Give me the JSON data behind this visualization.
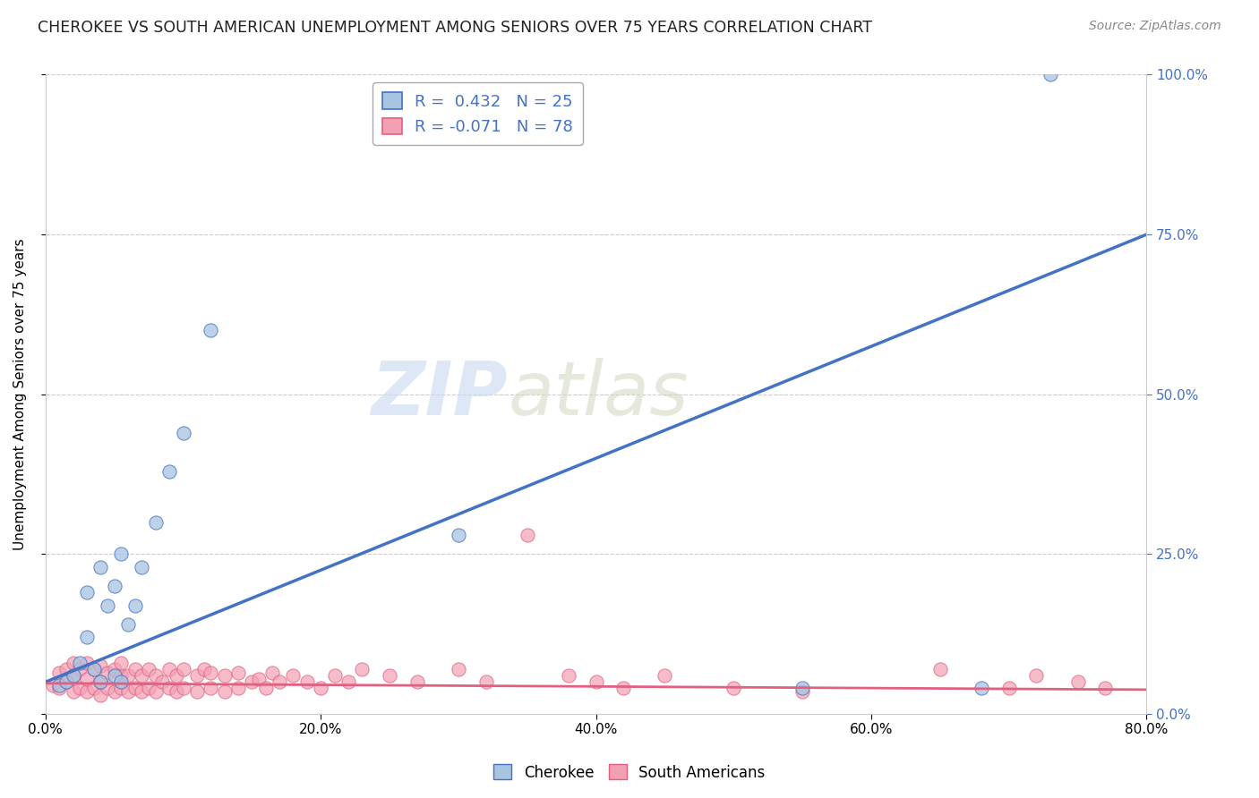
{
  "title": "CHEROKEE VS SOUTH AMERICAN UNEMPLOYMENT AMONG SENIORS OVER 75 YEARS CORRELATION CHART",
  "source": "Source: ZipAtlas.com",
  "ylabel": "Unemployment Among Seniors over 75 years",
  "xlim": [
    0,
    0.8
  ],
  "ylim": [
    0,
    1.0
  ],
  "xticks": [
    0.0,
    0.2,
    0.4,
    0.6,
    0.8
  ],
  "xtick_labels": [
    "0.0%",
    "20.0%",
    "40.0%",
    "60.0%",
    "80.0%"
  ],
  "yticks": [
    0.0,
    0.25,
    0.5,
    0.75,
    1.0
  ],
  "ytick_labels": [
    "0.0%",
    "25.0%",
    "50.0%",
    "75.0%",
    "100.0%"
  ],
  "right_ytick_labels": [
    "0.0%",
    "25.0%",
    "50.0%",
    "75.0%",
    "100.0%"
  ],
  "cherokee_R": 0.432,
  "cherokee_N": 25,
  "southam_R": -0.071,
  "southam_N": 78,
  "cherokee_color": "#a8c4e0",
  "southam_color": "#f4a0b4",
  "cherokee_line_color": "#4472c4",
  "southam_line_color": "#e06080",
  "watermark_zip": "ZIP",
  "watermark_atlas": "atlas",
  "cherokee_line_x0": 0.0,
  "cherokee_line_y0": 0.05,
  "cherokee_line_x1": 0.8,
  "cherokee_line_y1": 0.75,
  "southam_line_x0": 0.0,
  "southam_line_y0": 0.048,
  "southam_line_x1": 0.8,
  "southam_line_y1": 0.038,
  "cherokee_x": [
    0.01,
    0.015,
    0.02,
    0.025,
    0.03,
    0.03,
    0.035,
    0.04,
    0.04,
    0.045,
    0.05,
    0.05,
    0.055,
    0.055,
    0.06,
    0.065,
    0.07,
    0.08,
    0.09,
    0.1,
    0.12,
    0.3,
    0.55,
    0.68,
    0.73
  ],
  "cherokee_y": [
    0.045,
    0.05,
    0.06,
    0.08,
    0.12,
    0.19,
    0.07,
    0.05,
    0.23,
    0.17,
    0.06,
    0.2,
    0.05,
    0.25,
    0.14,
    0.17,
    0.23,
    0.3,
    0.38,
    0.44,
    0.6,
    0.28,
    0.04,
    0.04,
    1.0
  ],
  "southam_x": [
    0.005,
    0.01,
    0.01,
    0.015,
    0.015,
    0.02,
    0.02,
    0.02,
    0.025,
    0.025,
    0.03,
    0.03,
    0.03,
    0.035,
    0.035,
    0.04,
    0.04,
    0.04,
    0.045,
    0.045,
    0.05,
    0.05,
    0.055,
    0.055,
    0.055,
    0.06,
    0.06,
    0.065,
    0.065,
    0.07,
    0.07,
    0.075,
    0.075,
    0.08,
    0.08,
    0.085,
    0.09,
    0.09,
    0.095,
    0.095,
    0.1,
    0.1,
    0.11,
    0.11,
    0.115,
    0.12,
    0.12,
    0.13,
    0.13,
    0.14,
    0.14,
    0.15,
    0.155,
    0.16,
    0.165,
    0.17,
    0.18,
    0.19,
    0.2,
    0.21,
    0.22,
    0.23,
    0.25,
    0.27,
    0.3,
    0.32,
    0.35,
    0.38,
    0.4,
    0.42,
    0.45,
    0.5,
    0.55,
    0.65,
    0.7,
    0.72,
    0.75,
    0.77
  ],
  "southam_y": [
    0.045,
    0.04,
    0.065,
    0.05,
    0.07,
    0.035,
    0.06,
    0.08,
    0.04,
    0.07,
    0.035,
    0.055,
    0.08,
    0.04,
    0.07,
    0.03,
    0.05,
    0.075,
    0.04,
    0.065,
    0.035,
    0.07,
    0.04,
    0.06,
    0.08,
    0.035,
    0.06,
    0.04,
    0.07,
    0.035,
    0.06,
    0.04,
    0.07,
    0.035,
    0.06,
    0.05,
    0.04,
    0.07,
    0.035,
    0.06,
    0.04,
    0.07,
    0.035,
    0.06,
    0.07,
    0.04,
    0.065,
    0.035,
    0.06,
    0.04,
    0.065,
    0.05,
    0.055,
    0.04,
    0.065,
    0.05,
    0.06,
    0.05,
    0.04,
    0.06,
    0.05,
    0.07,
    0.06,
    0.05,
    0.07,
    0.05,
    0.28,
    0.06,
    0.05,
    0.04,
    0.06,
    0.04,
    0.035,
    0.07,
    0.04,
    0.06,
    0.05,
    0.04
  ]
}
